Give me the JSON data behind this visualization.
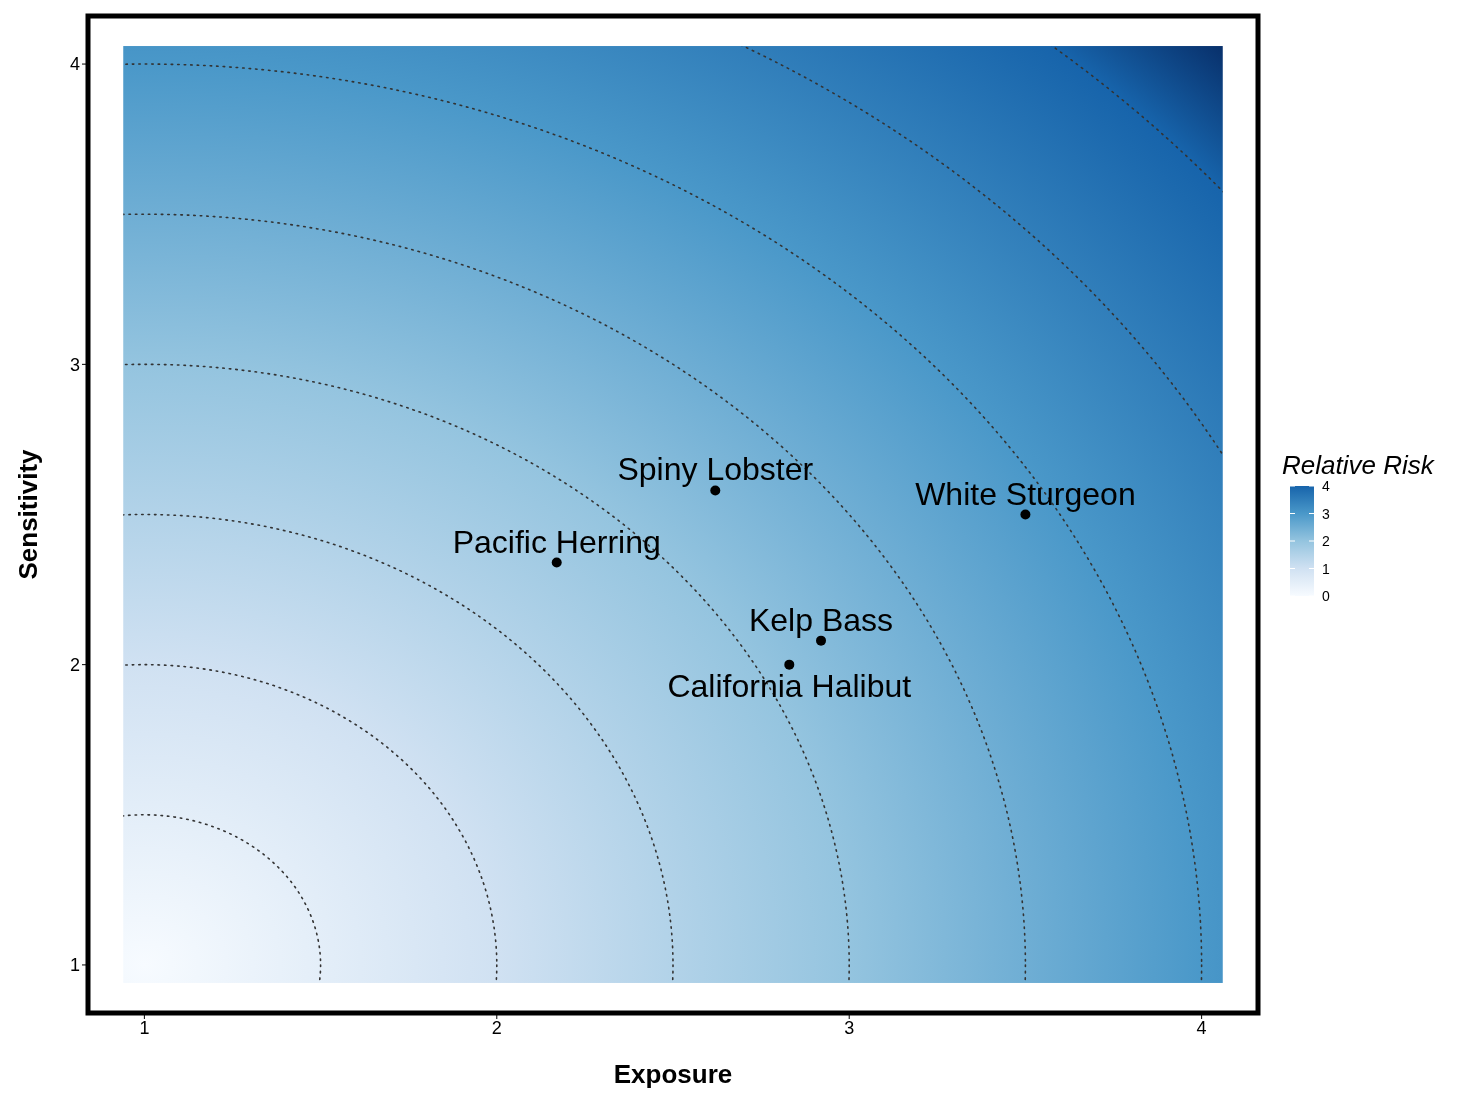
{
  "chart_data": {
    "type": "scatter",
    "xlabel": "Exposure",
    "ylabel": "Sensitivity",
    "clabel": "Relative Risk",
    "x": [
      2.62,
      3.5,
      2.17,
      2.92,
      2.83
    ],
    "series": [
      {
        "color": "#000000",
        "values": [
          2.58,
          2.5,
          2.34,
          2.08,
          2.0
        ]
      }
    ],
    "marker": "circle",
    "xlim": [
      0.84,
      4.16
    ],
    "ylim": [
      0.84,
      4.16
    ],
    "xticks": [
      1,
      2,
      3,
      4
    ],
    "yticks": [
      1,
      2,
      3,
      4
    ],
    "clim": [
      0,
      4
    ],
    "cticks": [
      0,
      1,
      2,
      3,
      4
    ],
    "annotations": [
      {
        "text": "Spiny Lobster",
        "x": 2.62,
        "y": 2.58
      },
      {
        "text": "White Sturgeon",
        "x": 3.5,
        "y": 2.5
      },
      {
        "text": "Pacific Herring",
        "x": 2.17,
        "y": 2.34
      },
      {
        "text": "Kelp Bass",
        "x": 2.92,
        "y": 2.08
      },
      {
        "text": "California Halibut",
        "x": 2.83,
        "y": 2.0
      }
    ]
  }
}
